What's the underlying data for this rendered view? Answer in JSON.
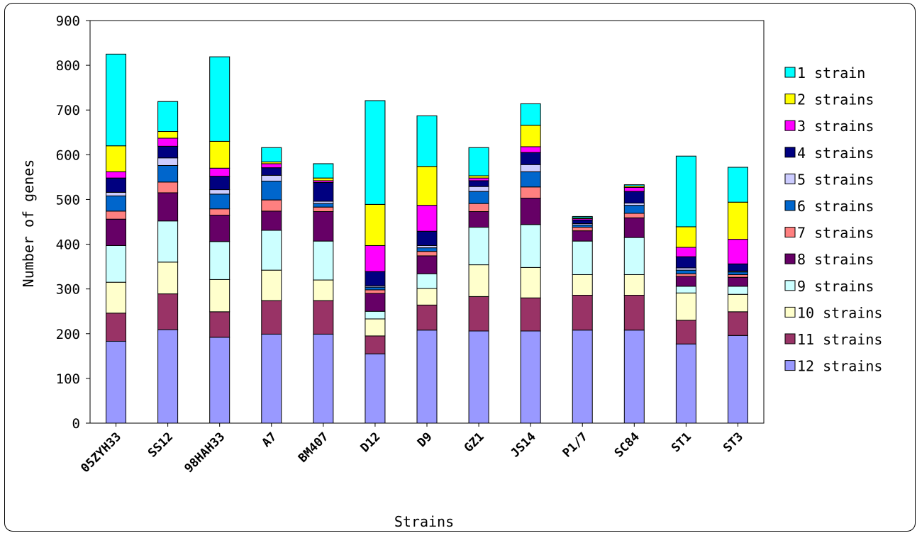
{
  "chart_data": {
    "type": "bar",
    "stacked": true,
    "xlabel": "Strains",
    "ylabel": "Number of genes",
    "ylim": [
      0,
      900
    ],
    "yticks": [
      0,
      100,
      200,
      300,
      400,
      500,
      600,
      700,
      800,
      900
    ],
    "legend_position": "right",
    "categories": [
      "05ZYH33",
      "SS12",
      "98HAH33",
      "A7",
      "BM407",
      "D12",
      "D9",
      "GZ1",
      "JS14",
      "P1/7",
      "SC84",
      "ST1",
      "ST3"
    ],
    "series": [
      {
        "name": "12 strains",
        "color": "#9999ff",
        "values": [
          183,
          209,
          192,
          199,
          199,
          155,
          208,
          206,
          206,
          208,
          208,
          177,
          196
        ]
      },
      {
        "name": "11 strains",
        "color": "#993366",
        "values": [
          63,
          80,
          57,
          75,
          75,
          40,
          56,
          77,
          74,
          78,
          78,
          53,
          53
        ]
      },
      {
        "name": "10 strains",
        "color": "#ffffcc",
        "values": [
          69,
          71,
          72,
          68,
          46,
          38,
          37,
          71,
          68,
          46,
          46,
          61,
          39
        ]
      },
      {
        "name": "9 strains",
        "color": "#ccffff",
        "values": [
          82,
          92,
          85,
          89,
          87,
          17,
          33,
          84,
          96,
          75,
          83,
          15,
          18
        ]
      },
      {
        "name": "8 strains",
        "color": "#660066",
        "values": [
          59,
          63,
          59,
          43,
          66,
          40,
          40,
          35,
          59,
          23,
          44,
          22,
          20
        ]
      },
      {
        "name": "7 strains",
        "color": "#ff8080",
        "values": [
          18,
          24,
          14,
          25,
          10,
          8,
          10,
          18,
          25,
          8,
          10,
          6,
          6
        ]
      },
      {
        "name": "6 strains",
        "color": "#0066cc",
        "values": [
          34,
          37,
          33,
          42,
          8,
          6,
          8,
          27,
          34,
          5,
          18,
          8,
          6
        ]
      },
      {
        "name": "5 strains",
        "color": "#ccccff",
        "values": [
          8,
          17,
          10,
          13,
          5,
          3,
          5,
          11,
          16,
          3,
          5,
          5,
          2
        ]
      },
      {
        "name": "4 strains",
        "color": "#000080",
        "values": [
          32,
          26,
          30,
          17,
          42,
          32,
          32,
          13,
          27,
          8,
          26,
          25,
          16
        ]
      },
      {
        "name": "3 strains",
        "color": "#ff00ff",
        "values": [
          14,
          18,
          18,
          9,
          4,
          58,
          58,
          6,
          13,
          3,
          9,
          21,
          55
        ]
      },
      {
        "name": "2 strains",
        "color": "#ffff00",
        "values": [
          58,
          15,
          60,
          4,
          6,
          92,
          87,
          5,
          48,
          2,
          3,
          46,
          83
        ]
      },
      {
        "name": "1 strain",
        "color": "#00ffff",
        "values": [
          205,
          67,
          189,
          32,
          32,
          232,
          113,
          63,
          48,
          3,
          3,
          158,
          78
        ]
      }
    ]
  }
}
